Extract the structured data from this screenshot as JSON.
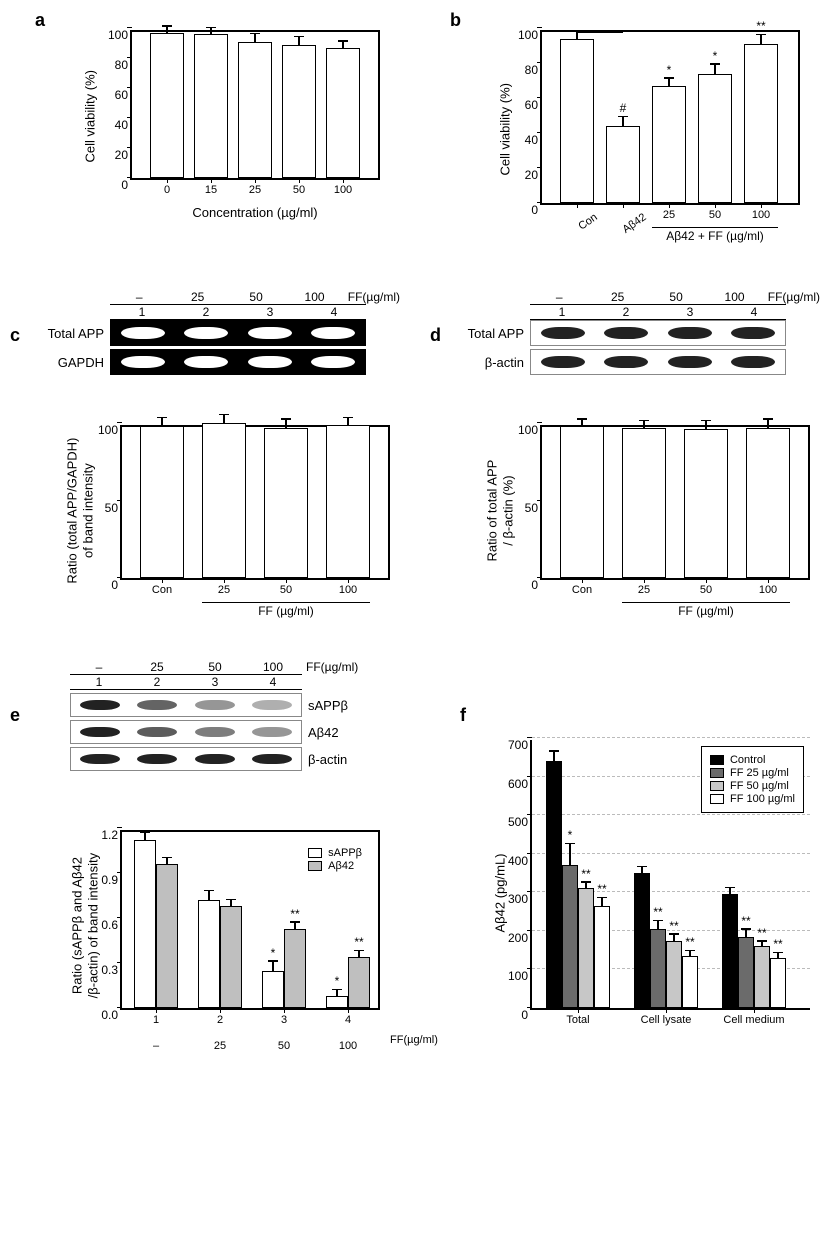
{
  "panel_a": {
    "label": "a",
    "ylabel": "Cell viability (%)",
    "xlabel": "Concentration (µg/ml)",
    "ylim": [
      0,
      100
    ],
    "ytick_step": 20,
    "categories": [
      "0",
      "15",
      "25",
      "50",
      "100"
    ],
    "values": [
      97,
      96,
      91,
      89,
      87
    ],
    "errors": [
      4,
      4,
      5,
      5,
      4
    ],
    "bar_fill": "#ffffff",
    "bar_stroke": "#000000"
  },
  "panel_b": {
    "label": "b",
    "ylabel": "Cell viability (%)",
    "ylim": [
      0,
      100
    ],
    "ytick_step": 20,
    "categories": [
      "Con",
      "Aβ42",
      "25",
      "50",
      "100"
    ],
    "values": [
      94,
      44,
      67,
      74,
      91
    ],
    "errors": [
      4,
      5,
      4,
      5,
      5
    ],
    "sig": [
      "",
      "#",
      "*",
      "*",
      "**"
    ],
    "group_label": "Aβ42 + FF (µg/ml)",
    "bar_fill": "#ffffff"
  },
  "panel_c": {
    "label": "c",
    "dose_header": [
      "–",
      "25",
      "50",
      "100"
    ],
    "dose_unit": "FF(µg/ml)",
    "lane_nums": [
      "1",
      "2",
      "3",
      "4"
    ],
    "row1": "Total APP",
    "row2": "GAPDH",
    "ylabel": "Ratio (total APP/GAPDH)\nof band intensity",
    "ylim": [
      0,
      100
    ],
    "ytick_step": 50,
    "categories": [
      "Con",
      "25",
      "50",
      "100"
    ],
    "values": [
      98,
      100,
      97,
      99
    ],
    "errors": [
      5,
      5,
      5,
      4
    ],
    "group_label": "FF (µg/ml)"
  },
  "panel_d": {
    "label": "d",
    "dose_header": [
      "–",
      "25",
      "50",
      "100"
    ],
    "dose_unit": "FF(µg/ml)",
    "lane_nums": [
      "1",
      "2",
      "3",
      "4"
    ],
    "row1": "Total APP",
    "row2": "β-actin",
    "ylabel": "Ratio of total APP\n/ β-actin (%)",
    "ylim": [
      0,
      100
    ],
    "ytick_step": 50,
    "categories": [
      "Con",
      "25",
      "50",
      "100"
    ],
    "values": [
      98,
      97,
      96,
      97
    ],
    "errors": [
      4,
      4,
      5,
      5
    ],
    "group_label": "FF (µg/ml)"
  },
  "panel_e": {
    "label": "e",
    "dose_header": [
      "–",
      "25",
      "50",
      "100"
    ],
    "dose_unit": "FF(µg/ml)",
    "lane_nums": [
      "1",
      "2",
      "3",
      "4"
    ],
    "rows": [
      "sAPPβ",
      "Aβ42",
      "β-actin"
    ],
    "band_intensity": {
      "sAPPβ": [
        1.0,
        0.6,
        0.3,
        0.15
      ],
      "Aβ42": [
        1.0,
        0.65,
        0.45,
        0.3
      ],
      "β-actin": [
        1.0,
        1.0,
        1.0,
        1.0
      ]
    },
    "ylabel": "Ratio (sAPPβ and Aβ42\n/β-actin) of band intensity",
    "ylim": [
      0,
      1.2
    ],
    "ytick_step": 0.3,
    "categories": [
      "1",
      "2",
      "3",
      "4"
    ],
    "x_secondary": [
      "–",
      "25",
      "50",
      "100"
    ],
    "x_secondary_unit": "FF(µg/ml)",
    "series": [
      {
        "name": "sAPPβ",
        "color": "#ffffff",
        "values": [
          1.12,
          0.72,
          0.25,
          0.08
        ],
        "errors": [
          0.05,
          0.06,
          0.06,
          0.04
        ],
        "sig": [
          "",
          "",
          "*",
          "*"
        ]
      },
      {
        "name": "Aβ42",
        "color": "#bfbfbf",
        "values": [
          0.96,
          0.68,
          0.53,
          0.34
        ],
        "errors": [
          0.04,
          0.04,
          0.04,
          0.04
        ],
        "sig": [
          "",
          "",
          "**",
          "**"
        ]
      }
    ],
    "legend": [
      "sAPPβ",
      "Aβ42"
    ]
  },
  "panel_f": {
    "label": "f",
    "ylabel": "Aβ42 (pg/mL)",
    "ylim": [
      0,
      700
    ],
    "ytick_step": 100,
    "groups": [
      "Total",
      "Cell lysate",
      "Cell medium"
    ],
    "series": [
      {
        "name": "Control",
        "color": "#000000",
        "values": [
          640,
          350,
          295
        ],
        "errors": [
          25,
          15,
          15
        ],
        "sig": [
          "",
          "",
          ""
        ]
      },
      {
        "name": "FF 25 µg/ml",
        "color": "#6b6b6b",
        "values": [
          370,
          205,
          185
        ],
        "errors": [
          55,
          20,
          18
        ],
        "sig": [
          "*",
          "**",
          "**"
        ]
      },
      {
        "name": "FF 50 µg/ml",
        "color": "#c7c7c7",
        "values": [
          310,
          175,
          160
        ],
        "errors": [
          15,
          15,
          12
        ],
        "sig": [
          "**",
          "**",
          "**"
        ]
      },
      {
        "name": "FF 100 µg/ml",
        "color": "#ffffff",
        "values": [
          265,
          135,
          130
        ],
        "errors": [
          20,
          12,
          12
        ],
        "sig": [
          "**",
          "**",
          "**"
        ]
      }
    ]
  },
  "style": {
    "label_fontsize": 13,
    "tick_fontsize": 12
  }
}
